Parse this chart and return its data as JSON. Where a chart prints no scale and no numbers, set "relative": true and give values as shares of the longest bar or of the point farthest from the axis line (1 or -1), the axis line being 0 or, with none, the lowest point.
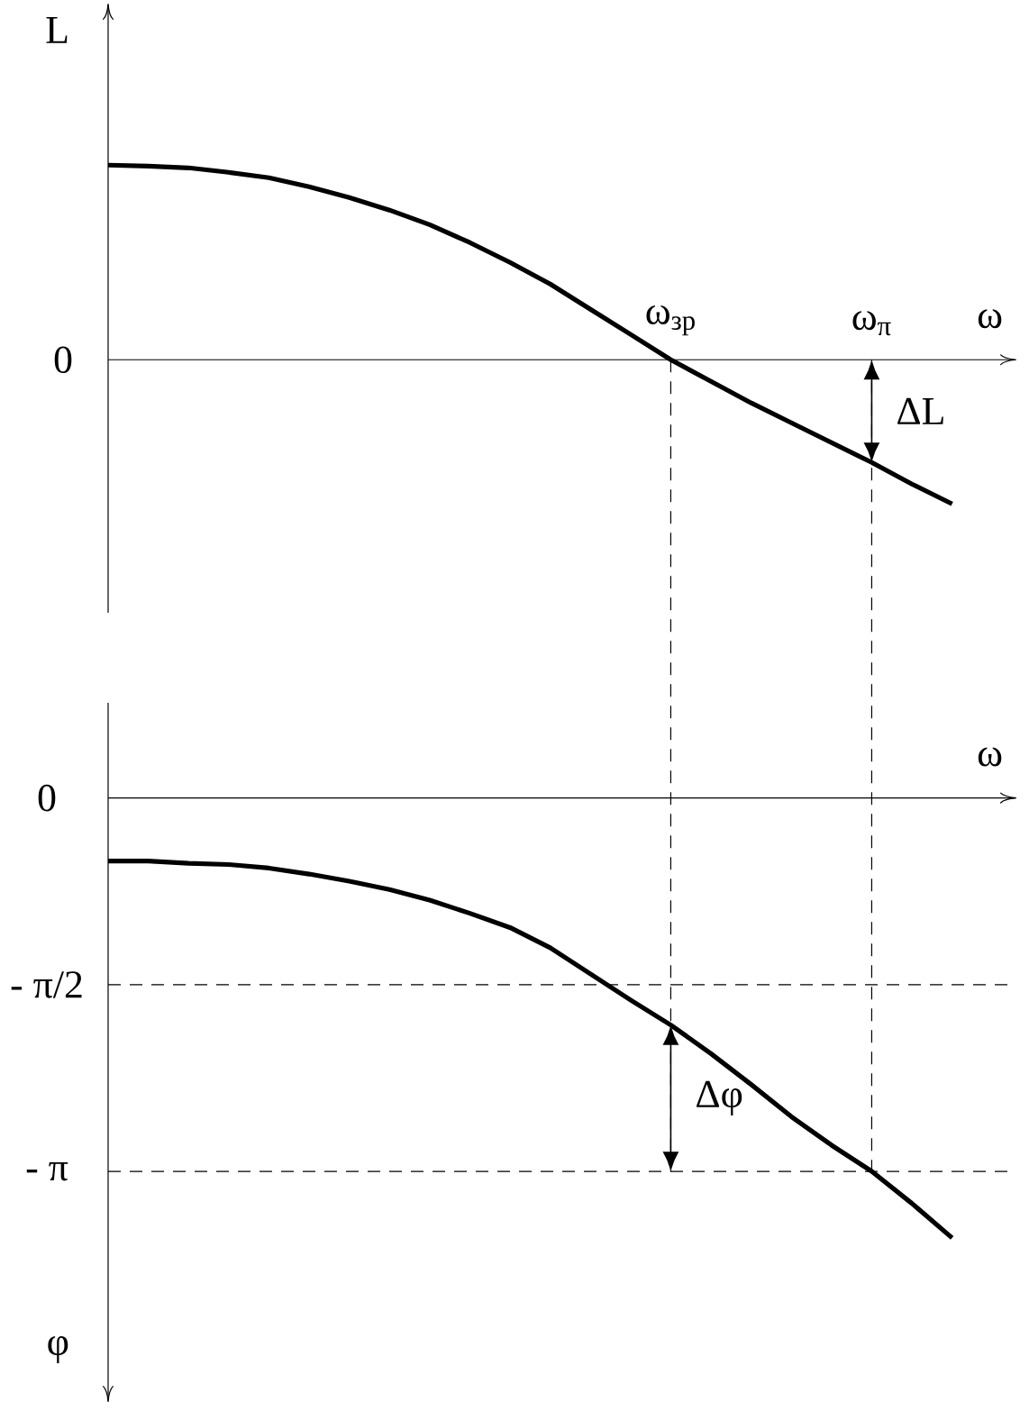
{
  "chart_data": [
    {
      "type": "line",
      "xlabel": "ω",
      "ylabel": "L",
      "relative": true,
      "categories": [
        null,
        null,
        null,
        null,
        null,
        null,
        null,
        null,
        null,
        null,
        null,
        null,
        null,
        null,
        "ω$_{зр}$",
        null,
        null,
        null,
        null,
        "ω$_{π}$",
        null,
        null
      ],
      "values": [
        1.0,
        0.995,
        0.986,
        0.963,
        0.935,
        0.889,
        0.833,
        0.769,
        0.694,
        0.602,
        0.5,
        0.389,
        0.259,
        0.13,
        0,
        -0.111,
        -0.222,
        -0.324,
        -0.426,
        -0.528,
        -0.639,
        -0.741
      ],
      "color": "#000000",
      "annotations": [
        "0",
        "ΔL"
      ]
    },
    {
      "type": "line",
      "xlabel": "ω",
      "ylabel": "φ",
      "categories": [
        null,
        null,
        null,
        null,
        null,
        null,
        null,
        null,
        null,
        null,
        null,
        null,
        null,
        null,
        null,
        null,
        null,
        null,
        null,
        null,
        null,
        null
      ],
      "values": [
        -0.53,
        -0.53,
        -0.55,
        -0.56,
        -0.59,
        -0.64,
        -0.7,
        -0.77,
        -0.86,
        -0.97,
        -1.09,
        -1.26,
        -1.48,
        -1.7,
        -1.91,
        -2.15,
        -2.41,
        -2.68,
        -2.92,
        -3.14,
        -3.41,
        -3.7
      ],
      "color": "#000000",
      "ylim": [
        -5.08,
        0.8
      ],
      "yticks": [
        0,
        {
          "value": -1.5708,
          "label": "- π/2"
        },
        {
          "value": -3.1416,
          "label": "- π"
        }
      ],
      "ref_lines": [
        {
          "axis": "y",
          "value": -1.5708,
          "label": null,
          "line_style": "dashed"
        },
        {
          "axis": "y",
          "value": -3.1416,
          "label": null,
          "line_style": "dashed"
        }
      ],
      "annotations": [
        "Δφ"
      ]
    }
  ]
}
